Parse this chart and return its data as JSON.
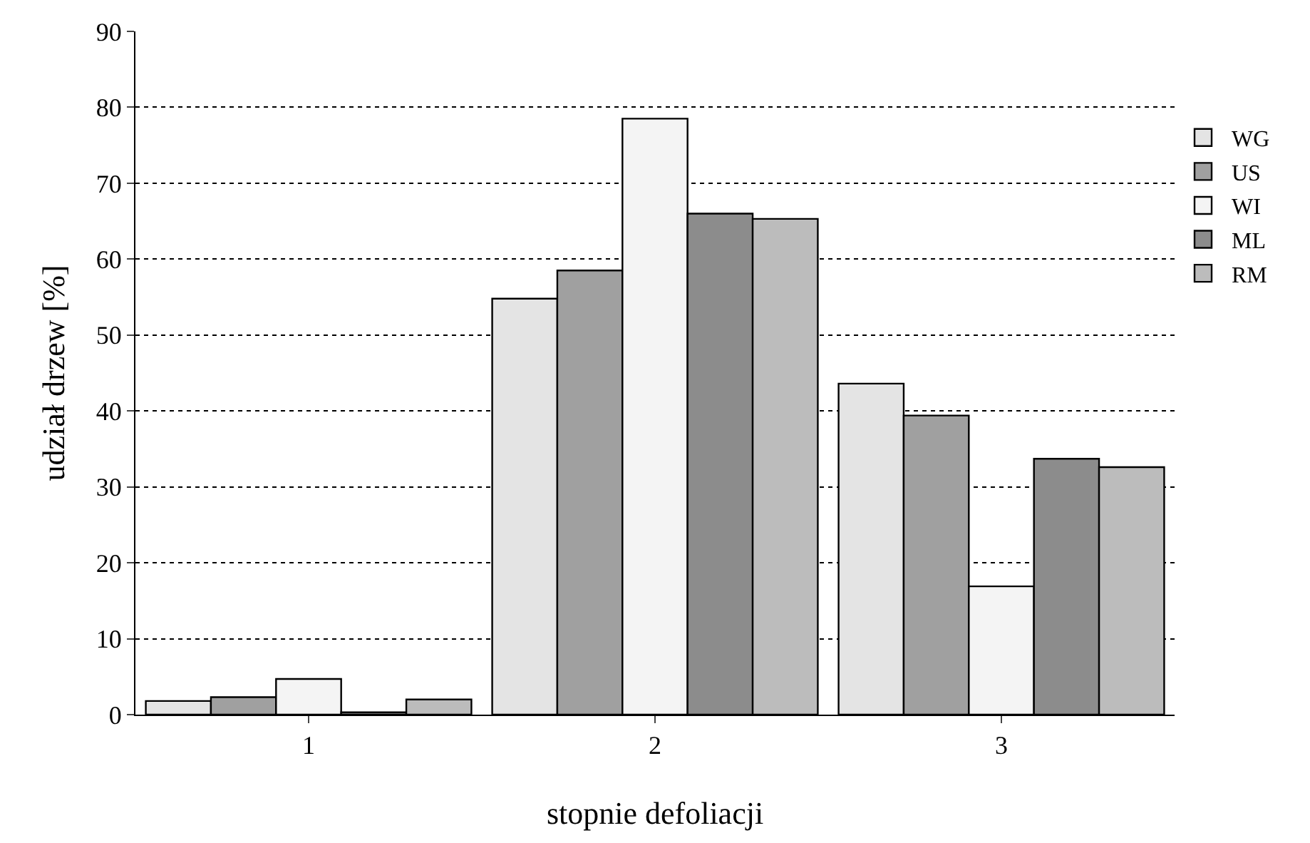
{
  "chart_data": {
    "type": "bar",
    "xlabel": "stopnie defoliacji",
    "ylabel": "udział drzew [%]",
    "categories": [
      "1",
      "2",
      "3"
    ],
    "series": [
      {
        "name": "WG",
        "color": "#e4e4e4",
        "values": [
          1.8,
          54.8,
          43.6
        ]
      },
      {
        "name": "US",
        "color": "#a0a0a0",
        "values": [
          2.3,
          58.5,
          39.4
        ]
      },
      {
        "name": "WI",
        "color": "#f4f4f4",
        "values": [
          4.7,
          78.5,
          16.9
        ]
      },
      {
        "name": "ML",
        "color": "#8c8c8c",
        "values": [
          0.3,
          66.0,
          33.7
        ]
      },
      {
        "name": "RM",
        "color": "#bcbcbc",
        "values": [
          2.0,
          65.3,
          32.6
        ]
      }
    ],
    "ylim": [
      0,
      90
    ],
    "yticks": [
      0,
      10,
      20,
      30,
      40,
      50,
      60,
      70,
      80,
      90
    ],
    "grid": "y",
    "legend": "right"
  }
}
